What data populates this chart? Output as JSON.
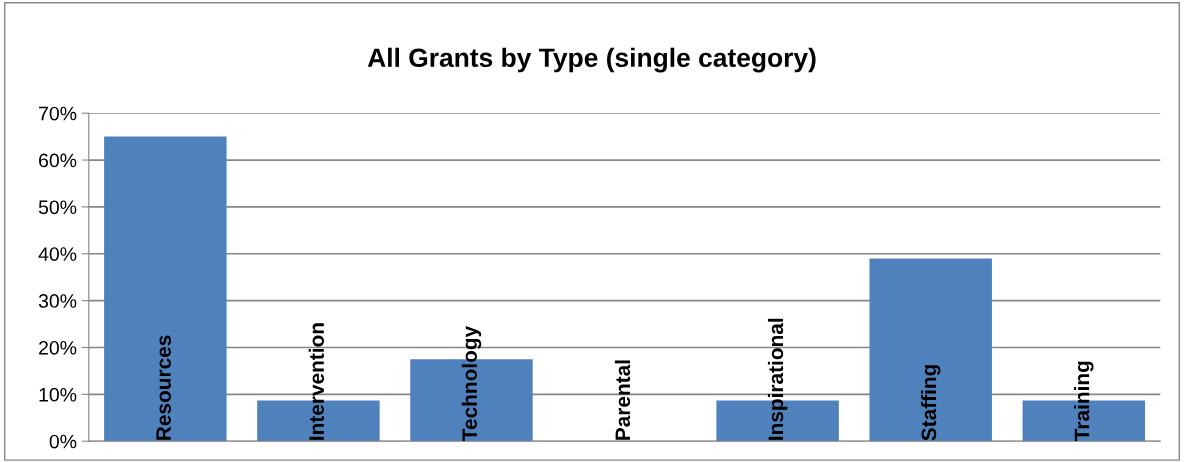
{
  "chart_data": {
    "type": "bar",
    "title": "All Grants by Type (single category)",
    "categories": [
      "Resources",
      "Intervention",
      "Technology",
      "Parental",
      "Inspirational",
      "Staffing",
      "Training"
    ],
    "values": [
      65,
      8.7,
      17.5,
      0,
      8.7,
      39,
      8.7
    ],
    "color": "#4f81bd",
    "ylim": [
      0,
      70
    ],
    "yticks": [
      {
        "value": 0,
        "label": "0%"
      },
      {
        "value": 10,
        "label": "10%"
      },
      {
        "value": 20,
        "label": "20%"
      },
      {
        "value": 30,
        "label": "30%"
      },
      {
        "value": 40,
        "label": "40%"
      },
      {
        "value": 50,
        "label": "50%"
      },
      {
        "value": 60,
        "label": "60%"
      },
      {
        "value": 70,
        "label": "70%"
      }
    ],
    "grid": "y"
  }
}
